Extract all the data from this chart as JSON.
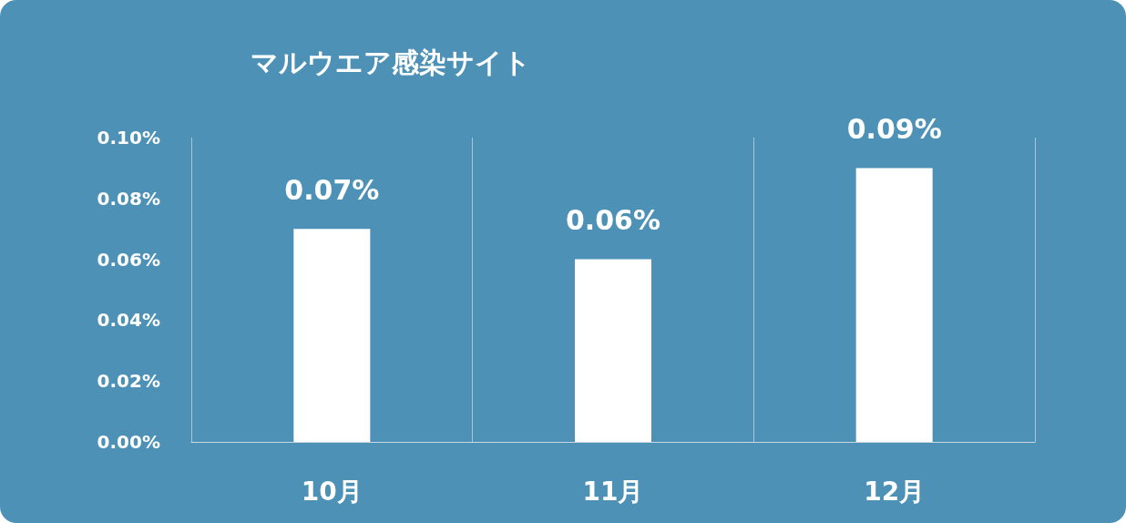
{
  "chart_data": {
    "type": "bar",
    "title": "マルウエア感染サイト",
    "categories": [
      "10月",
      "11月",
      "12月"
    ],
    "values": [
      0.07,
      0.06,
      0.09
    ],
    "color": "#ffffff",
    "value_labels": [
      "0.07%",
      "0.06%",
      "0.09%"
    ],
    "ylim": [
      0,
      0.1
    ],
    "yticks": [
      {
        "value": 0,
        "label": "0.00%"
      },
      {
        "value": 0.02,
        "label": "0.02%"
      },
      {
        "value": 0.04,
        "label": "0.04%"
      },
      {
        "value": 0.06,
        "label": "0.06%"
      },
      {
        "value": 0.08,
        "label": "0.08%"
      },
      {
        "value": 0.1,
        "label": "0.10%"
      }
    ],
    "grid": "x"
  }
}
